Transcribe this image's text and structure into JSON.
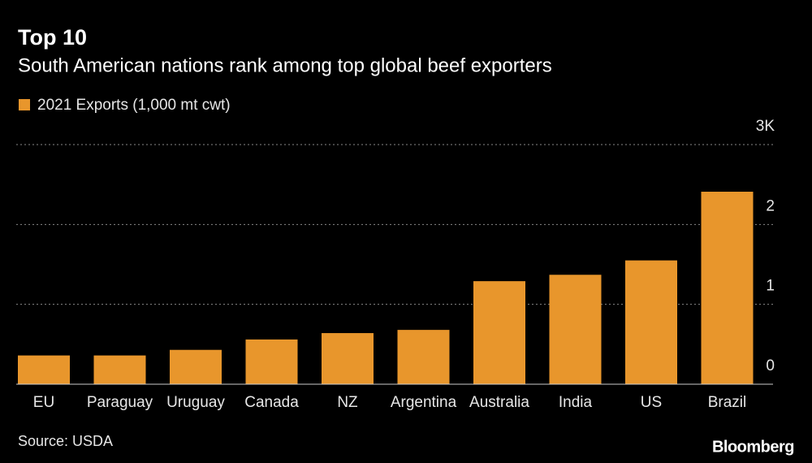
{
  "chart_data": {
    "type": "bar",
    "title": "Top 10",
    "subtitle": "South American nations rank among top global beef exporters",
    "categories": [
      "EU",
      "Paraguay",
      "Uruguay",
      "Canada",
      "NZ",
      "Argentina",
      "Australia",
      "India",
      "US",
      "Brazil"
    ],
    "series": [
      {
        "name": "2021 Exports (1,000 mt cwt)",
        "color": "#e8962c",
        "values": [
          0.36,
          0.36,
          0.43,
          0.56,
          0.64,
          0.68,
          1.29,
          1.37,
          1.55,
          2.41
        ]
      }
    ],
    "ylim": [
      0,
      3
    ],
    "yticks": [
      0,
      1,
      2,
      {
        "value": 3,
        "label": "3K"
      }
    ],
    "grid": true,
    "source": "Source: USDA",
    "brand": "Bloomberg"
  }
}
